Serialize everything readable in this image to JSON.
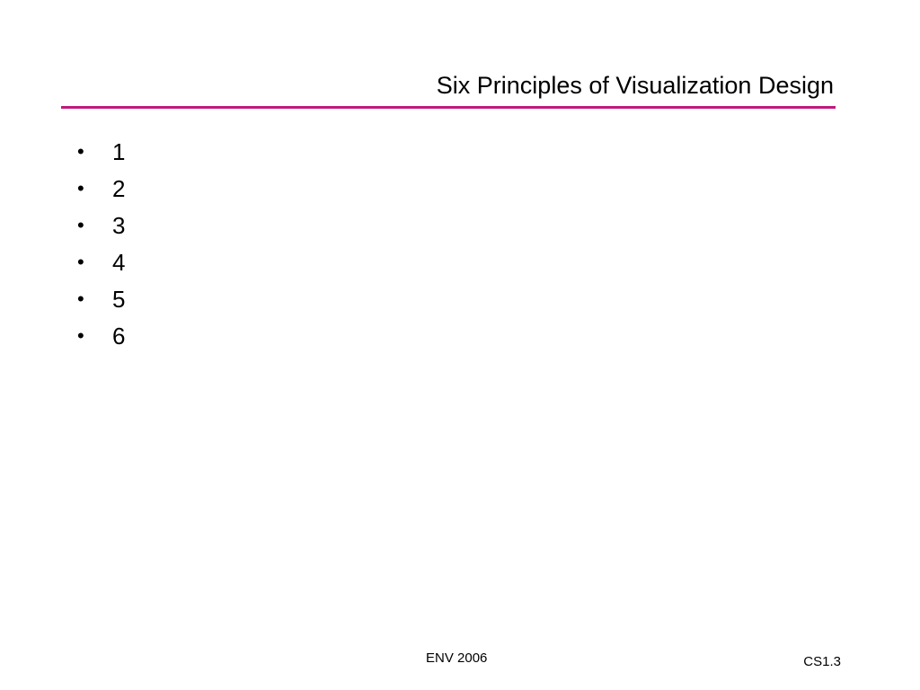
{
  "slide": {
    "title": "Six Principles of Visualization Design",
    "accent_color": "#c0197a",
    "bullet_glyph": "•",
    "items": [
      {
        "text": "1"
      },
      {
        "text": "2"
      },
      {
        "text": "3"
      },
      {
        "text": "4"
      },
      {
        "text": "5"
      },
      {
        "text": "6"
      }
    ],
    "footer": {
      "center": "ENV 2006",
      "right": "CS1.3"
    }
  }
}
